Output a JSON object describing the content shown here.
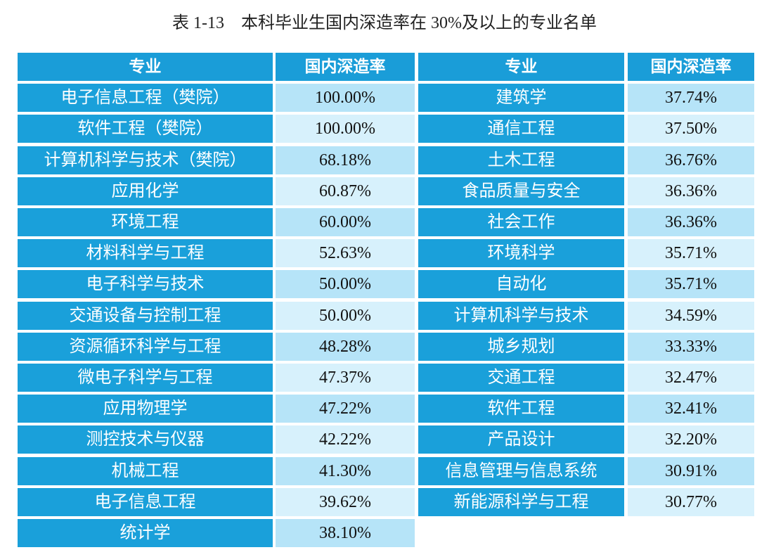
{
  "title": "表 1-13　本科毕业生国内深造率在 30%及以上的专业名单",
  "tables": [
    {
      "header": [
        "专业",
        "国内深造率"
      ],
      "rows": [
        [
          "电子信息工程（樊院）",
          "100.00%"
        ],
        [
          "软件工程（樊院）",
          "100.00%"
        ],
        [
          "计算机科学与技术（樊院）",
          "68.18%"
        ],
        [
          "应用化学",
          "60.87%"
        ],
        [
          "环境工程",
          "60.00%"
        ],
        [
          "材料科学与工程",
          "52.63%"
        ],
        [
          "电子科学与技术",
          "50.00%"
        ],
        [
          "交通设备与控制工程",
          "50.00%"
        ],
        [
          "资源循环科学与工程",
          "48.28%"
        ],
        [
          "微电子科学与工程",
          "47.37%"
        ],
        [
          "应用物理学",
          "47.22%"
        ],
        [
          "测控技术与仪器",
          "42.22%"
        ],
        [
          "机械工程",
          "41.30%"
        ],
        [
          "电子信息工程",
          "39.62%"
        ],
        [
          "统计学",
          "38.10%"
        ]
      ]
    },
    {
      "header": [
        "专业",
        "国内深造率"
      ],
      "rows": [
        [
          "建筑学",
          "37.74%"
        ],
        [
          "通信工程",
          "37.50%"
        ],
        [
          "土木工程",
          "36.76%"
        ],
        [
          "食品质量与安全",
          "36.36%"
        ],
        [
          "社会工作",
          "36.36%"
        ],
        [
          "环境科学",
          "35.71%"
        ],
        [
          "自动化",
          "35.71%"
        ],
        [
          "计算机科学与技术",
          "34.59%"
        ],
        [
          "城乡规划",
          "33.33%"
        ],
        [
          "交通工程",
          "32.47%"
        ],
        [
          "软件工程",
          "32.41%"
        ],
        [
          "产品设计",
          "32.20%"
        ],
        [
          "信息管理与信息系统",
          "30.91%"
        ],
        [
          "新能源科学与工程",
          "30.77%"
        ]
      ]
    }
  ]
}
